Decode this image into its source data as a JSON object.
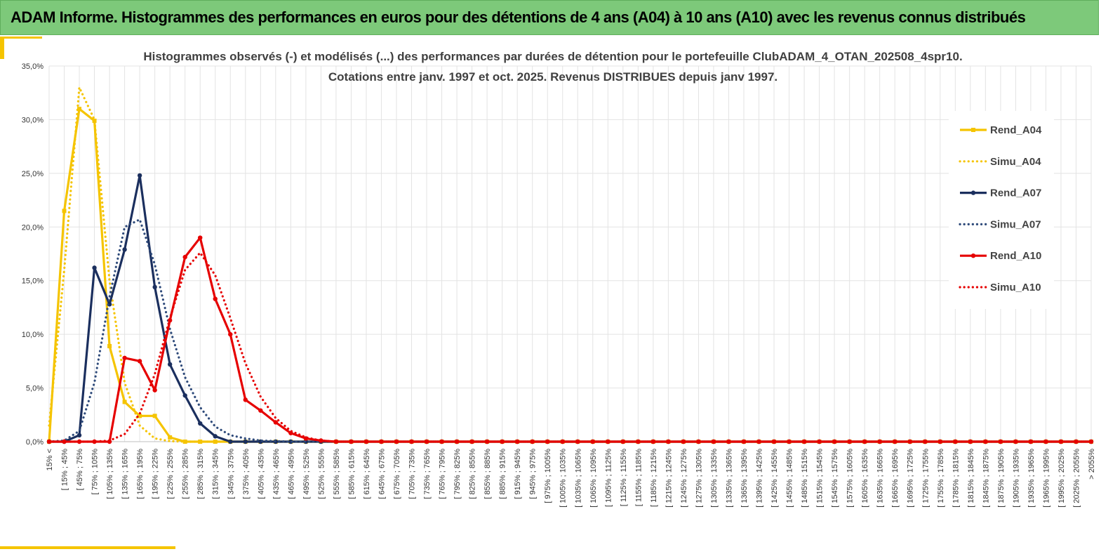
{
  "banner": {
    "title": "ADAM Informe. Histogrammes des performances en euros pour des détentions de 4 ans (A04) à 10 ans (A10) avec les revenus connus distribués"
  },
  "chart_data": {
    "type": "line",
    "title": "Histogrammes observés (-) et modélisés (...) des performances par durées de détention pour le portefeuille ClubADAM_4_OTAN_202508_4spr10.",
    "subtitle": "Cotations entre janv. 1997 et oct. 2025. Revenus DISTRIBUES depuis janv 1997.",
    "xlabel": "",
    "ylabel": "",
    "ylim": [
      0,
      35
    ],
    "y_ticks": [
      "0,0%",
      "5,0%",
      "10,0%",
      "15,0%",
      "20,0%",
      "25,0%",
      "30,0%",
      "35,0%"
    ],
    "grid": true,
    "legend_position": "right",
    "categories": [
      "15% <",
      "[ 15% ; 45%",
      "[ 45% ; 75%",
      "[ 75% ; 105%",
      "[ 105% ; 135%",
      "[ 135% ; 165%",
      "[ 165% ; 195%",
      "[ 195% ; 225%",
      "[ 225% ; 255%",
      "[ 255% ; 285%",
      "[ 285% ; 315%",
      "[ 315% ; 345%",
      "[ 345% ; 375%",
      "[ 375% ; 405%",
      "[ 405% ; 435%",
      "[ 435% ; 465%",
      "[ 465% ; 495%",
      "[ 495% ; 525%",
      "[ 525% ; 555%",
      "[ 555% ; 585%",
      "[ 585% ; 615%",
      "[ 615% ; 645%",
      "[ 645% ; 675%",
      "[ 675% ; 705%",
      "[ 705% ; 735%",
      "[ 735% ; 765%",
      "[ 765% ; 795%",
      "[ 795% ; 825%",
      "[ 825% ; 855%",
      "[ 855% ; 885%",
      "[ 885% ; 915%",
      "[ 915% ; 945%",
      "[ 945% ; 975%",
      "[ 975% ; 1005%",
      "[ 1005% ; 1035%",
      "[ 1035% ; 1065%",
      "[ 1065% ; 1095%",
      "[ 1095% ; 1125%",
      "[ 1125% ; 1155%",
      "[ 1155% ; 1185%",
      "[ 1185% ; 1215%",
      "[ 1215% ; 1245%",
      "[ 1245% ; 1275%",
      "[ 1275% ; 1305%",
      "[ 1305% ; 1335%",
      "[ 1335% ; 1365%",
      "[ 1365% ; 1395%",
      "[ 1395% ; 1425%",
      "[ 1425% ; 1455%",
      "[ 1455% ; 1485%",
      "[ 1485% ; 1515%",
      "[ 1515% ; 1545%",
      "[ 1545% ; 1575%",
      "[ 1575% ; 1605%",
      "[ 1605% ; 1635%",
      "[ 1635% ; 1665%",
      "[ 1665% ; 1695%",
      "[ 1695% ; 1725%",
      "[ 1725% ; 1755%",
      "[ 1755% ; 1785%",
      "[ 1785% ; 1815%",
      "[ 1815% ; 1845%",
      "[ 1845% ; 1875%",
      "[ 1875% ; 1905%",
      "[ 1905% ; 1935%",
      "[ 1935% ; 1965%",
      "[ 1965% ; 1995%",
      "[ 1995% ; 2025%",
      "[ 2025% ; 2055%",
      "> 2055%"
    ],
    "series": [
      {
        "name": "Rend_A04",
        "color": "#f5c400",
        "style": "solid",
        "marker": "square",
        "values": [
          0.0,
          21.5,
          31.0,
          29.9,
          8.9,
          3.7,
          2.4,
          2.4,
          0.4,
          0.0,
          0.0,
          0.0,
          0.0,
          0.0,
          0.0,
          0.0,
          0.0,
          0.0,
          0.0,
          0.0,
          0.0,
          0.0,
          0.0,
          0.0,
          0.0,
          0.0,
          0.0,
          0.0,
          0.0,
          0.0,
          0.0,
          0.0,
          0.0,
          0.0,
          0.0,
          0.0,
          0.0,
          0.0,
          0.0,
          0.0,
          0.0,
          0.0,
          0.0,
          0.0,
          0.0,
          0.0,
          0.0,
          0.0,
          0.0,
          0.0,
          0.0,
          0.0,
          0.0,
          0.0,
          0.0,
          0.0,
          0.0,
          0.0,
          0.0,
          0.0,
          0.0,
          0.0,
          0.0,
          0.0,
          0.0,
          0.0,
          0.0,
          0.0,
          0.0,
          0.0
        ]
      },
      {
        "name": "Simu_A04",
        "color": "#f5c400",
        "style": "dotted",
        "marker": "none",
        "values": [
          1.5,
          16.0,
          33.0,
          30.0,
          15.0,
          5.5,
          1.5,
          0.3,
          0.05,
          0.0,
          0.0,
          0.0,
          0.0,
          0.0,
          0.0,
          0.0,
          0.0,
          0.0,
          0.0,
          0.0,
          0.0,
          0.0,
          0.0,
          0.0,
          0.0,
          0.0,
          0.0,
          0.0,
          0.0,
          0.0,
          0.0,
          0.0,
          0.0,
          0.0,
          0.0,
          0.0,
          0.0,
          0.0,
          0.0,
          0.0,
          0.0,
          0.0,
          0.0,
          0.0,
          0.0,
          0.0,
          0.0,
          0.0,
          0.0,
          0.0,
          0.0,
          0.0,
          0.0,
          0.0,
          0.0,
          0.0,
          0.0,
          0.0,
          0.0,
          0.0,
          0.0,
          0.0,
          0.0,
          0.0,
          0.0,
          0.0,
          0.0,
          0.0,
          0.0,
          0.0
        ]
      },
      {
        "name": "Rend_A07",
        "color": "#1b2f5e",
        "style": "solid",
        "marker": "circle",
        "values": [
          0.0,
          0.0,
          0.6,
          16.2,
          12.8,
          17.9,
          24.8,
          14.4,
          7.2,
          4.3,
          1.7,
          0.5,
          0.0,
          0.0,
          0.0,
          0.0,
          0.0,
          0.0,
          0.0,
          0.0,
          0.0,
          0.0,
          0.0,
          0.0,
          0.0,
          0.0,
          0.0,
          0.0,
          0.0,
          0.0,
          0.0,
          0.0,
          0.0,
          0.0,
          0.0,
          0.0,
          0.0,
          0.0,
          0.0,
          0.0,
          0.0,
          0.0,
          0.0,
          0.0,
          0.0,
          0.0,
          0.0,
          0.0,
          0.0,
          0.0,
          0.0,
          0.0,
          0.0,
          0.0,
          0.0,
          0.0,
          0.0,
          0.0,
          0.0,
          0.0,
          0.0,
          0.0,
          0.0,
          0.0,
          0.0,
          0.0,
          0.0,
          0.0,
          0.0,
          0.0
        ]
      },
      {
        "name": "Simu_A07",
        "color": "#2e4a7a",
        "style": "dotted",
        "marker": "none",
        "values": [
          0.0,
          0.1,
          1.0,
          5.5,
          13.5,
          20.0,
          20.7,
          16.5,
          10.5,
          6.0,
          3.2,
          1.4,
          0.6,
          0.3,
          0.1,
          0.05,
          0.0,
          0.0,
          0.0,
          0.0,
          0.0,
          0.0,
          0.0,
          0.0,
          0.0,
          0.0,
          0.0,
          0.0,
          0.0,
          0.0,
          0.0,
          0.0,
          0.0,
          0.0,
          0.0,
          0.0,
          0.0,
          0.0,
          0.0,
          0.0,
          0.0,
          0.0,
          0.0,
          0.0,
          0.0,
          0.0,
          0.0,
          0.0,
          0.0,
          0.0,
          0.0,
          0.0,
          0.0,
          0.0,
          0.0,
          0.0,
          0.0,
          0.0,
          0.0,
          0.0,
          0.0,
          0.0,
          0.0,
          0.0,
          0.0,
          0.0,
          0.0,
          0.0,
          0.0,
          0.0
        ]
      },
      {
        "name": "Rend_A10",
        "color": "#e60000",
        "style": "solid",
        "marker": "circle",
        "values": [
          0.0,
          0.0,
          0.0,
          0.0,
          0.0,
          7.8,
          7.5,
          4.8,
          11.3,
          17.2,
          19.0,
          13.3,
          10.0,
          3.9,
          2.9,
          1.8,
          0.8,
          0.3,
          0.1,
          0.0,
          0.0,
          0.0,
          0.0,
          0.0,
          0.0,
          0.0,
          0.0,
          0.0,
          0.0,
          0.0,
          0.0,
          0.0,
          0.0,
          0.0,
          0.0,
          0.0,
          0.0,
          0.0,
          0.0,
          0.0,
          0.0,
          0.0,
          0.0,
          0.0,
          0.0,
          0.0,
          0.0,
          0.0,
          0.0,
          0.0,
          0.0,
          0.0,
          0.0,
          0.0,
          0.0,
          0.0,
          0.0,
          0.0,
          0.0,
          0.0,
          0.0,
          0.0,
          0.0,
          0.0,
          0.0,
          0.0,
          0.0,
          0.0,
          0.0,
          0.0
        ]
      },
      {
        "name": "Simu_A10",
        "color": "#e60000",
        "style": "dotted",
        "marker": "none",
        "values": [
          0.0,
          0.0,
          0.0,
          0.0,
          0.1,
          0.7,
          2.6,
          6.3,
          11.5,
          16.0,
          17.6,
          15.5,
          11.5,
          7.3,
          4.2,
          2.2,
          1.0,
          0.4,
          0.1,
          0.0,
          0.0,
          0.0,
          0.0,
          0.0,
          0.0,
          0.0,
          0.0,
          0.0,
          0.0,
          0.0,
          0.0,
          0.0,
          0.0,
          0.0,
          0.0,
          0.0,
          0.0,
          0.0,
          0.0,
          0.0,
          0.0,
          0.0,
          0.0,
          0.0,
          0.0,
          0.0,
          0.0,
          0.0,
          0.0,
          0.0,
          0.0,
          0.0,
          0.0,
          0.0,
          0.0,
          0.0,
          0.0,
          0.0,
          0.0,
          0.0,
          0.0,
          0.0,
          0.0,
          0.0,
          0.0,
          0.0,
          0.0,
          0.0,
          0.0,
          0.0
        ]
      }
    ]
  }
}
